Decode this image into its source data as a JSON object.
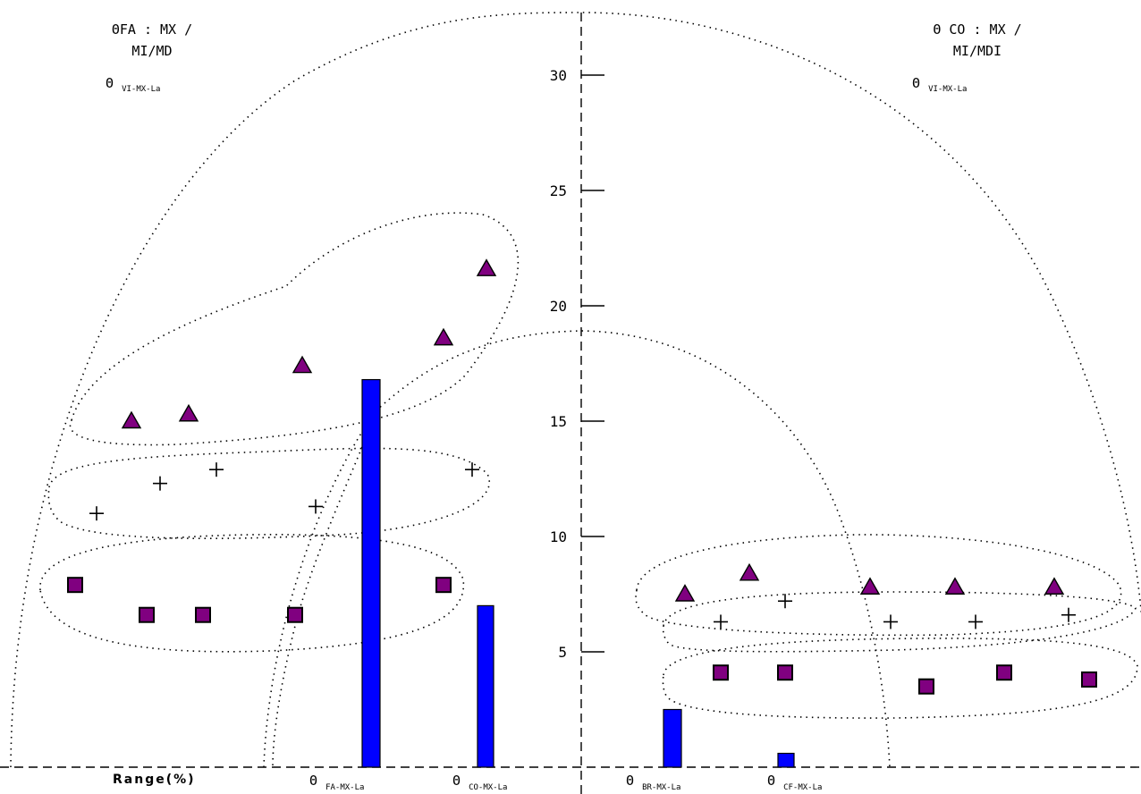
{
  "corner_left": {
    "line1": "ΘFA : MX /",
    "line2": "MI/MD",
    "theta": "Θ",
    "sub": "VI-MX-La"
  },
  "corner_right": {
    "line1": "Θ CO : MX /",
    "line2": "MI/MDI",
    "theta": "Θ",
    "sub": "VI-MX-La"
  },
  "bottom": {
    "range": "Range(%)",
    "labels": [
      {
        "theta": "Θ",
        "sub": "FA-MX-La"
      },
      {
        "theta": "Θ",
        "sub": "CO-MX-La"
      },
      {
        "theta": "Θ",
        "sub": "BR-MX-La"
      },
      {
        "theta": "Θ",
        "sub": "CF-MX-La"
      }
    ]
  },
  "colors": {
    "bar": "#0000ff",
    "marker": "#800080",
    "axis": "#000000"
  },
  "chart_data": {
    "type": "scatter",
    "ylim": [
      0,
      32
    ],
    "yticks": [
      5,
      10,
      15,
      20,
      25,
      30
    ],
    "grid": false,
    "bars": [
      {
        "label": "FA-MX-La",
        "value": 16.8
      },
      {
        "label": "CO-MX-La",
        "value": 7.0
      },
      {
        "label": "BR-MX-La",
        "value": 2.5
      },
      {
        "label": "CF-MX-La",
        "value": 0.6
      }
    ],
    "left_panel": {
      "triangles": [
        15.0,
        15.3,
        17.4,
        18.6,
        21.6
      ],
      "crosses": [
        11.0,
        12.3,
        12.9,
        11.3,
        12.9
      ],
      "squares": [
        7.9,
        6.6,
        6.6,
        6.6,
        7.9
      ]
    },
    "right_panel": {
      "triangles": [
        7.5,
        8.4,
        7.8,
        7.8,
        7.8
      ],
      "crosses": [
        6.3,
        7.2,
        6.3,
        6.3,
        6.6
      ],
      "squares": [
        4.1,
        4.1,
        3.5,
        4.1,
        3.8
      ]
    }
  }
}
